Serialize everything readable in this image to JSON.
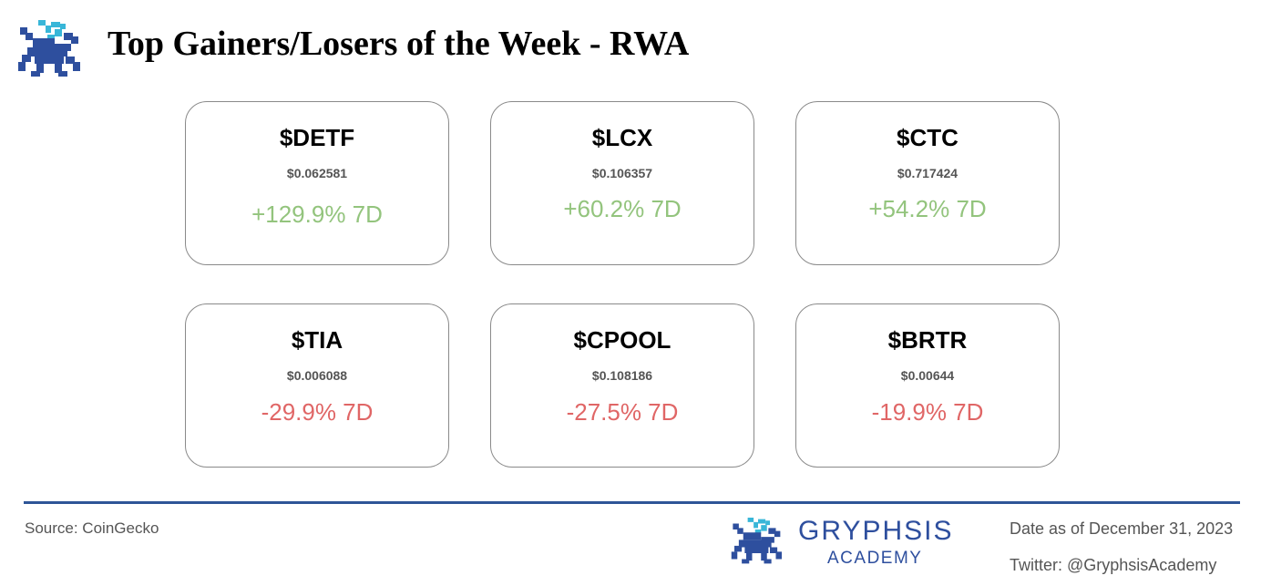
{
  "header": {
    "logo_icon": "gryphon-pixel-logo-icon",
    "title": "Top Gainers/Losers of the Week - RWA"
  },
  "colors": {
    "gain": "#93c47d",
    "loss": "#e06666",
    "brand": "#2e4f9e",
    "accent": "#38b6d8"
  },
  "cards": [
    {
      "ticker": "$DETF",
      "price": "$0.062581",
      "change": "+129.9% 7D",
      "direction": "gain"
    },
    {
      "ticker": "$LCX",
      "price": "$0.106357",
      "change": "+60.2% 7D",
      "direction": "gain"
    },
    {
      "ticker": "$CTC",
      "price": "$0.717424",
      "change": "+54.2% 7D",
      "direction": "gain"
    },
    {
      "ticker": "$TIA",
      "price": "$0.006088",
      "change": "-29.9% 7D",
      "direction": "loss"
    },
    {
      "ticker": "$CPOOL",
      "price": "$0.108186",
      "change": "-27.5% 7D",
      "direction": "loss"
    },
    {
      "ticker": "$BRTR",
      "price": "$0.00644",
      "change": "-19.9% 7D",
      "direction": "loss"
    }
  ],
  "footer": {
    "source": "Source: CoinGecko",
    "brand_name": "GRYPHSIS",
    "brand_sub": "ACADEMY",
    "date": "Date as of December 31, 2023",
    "twitter": "Twitter: @GryphsisAcademy"
  }
}
